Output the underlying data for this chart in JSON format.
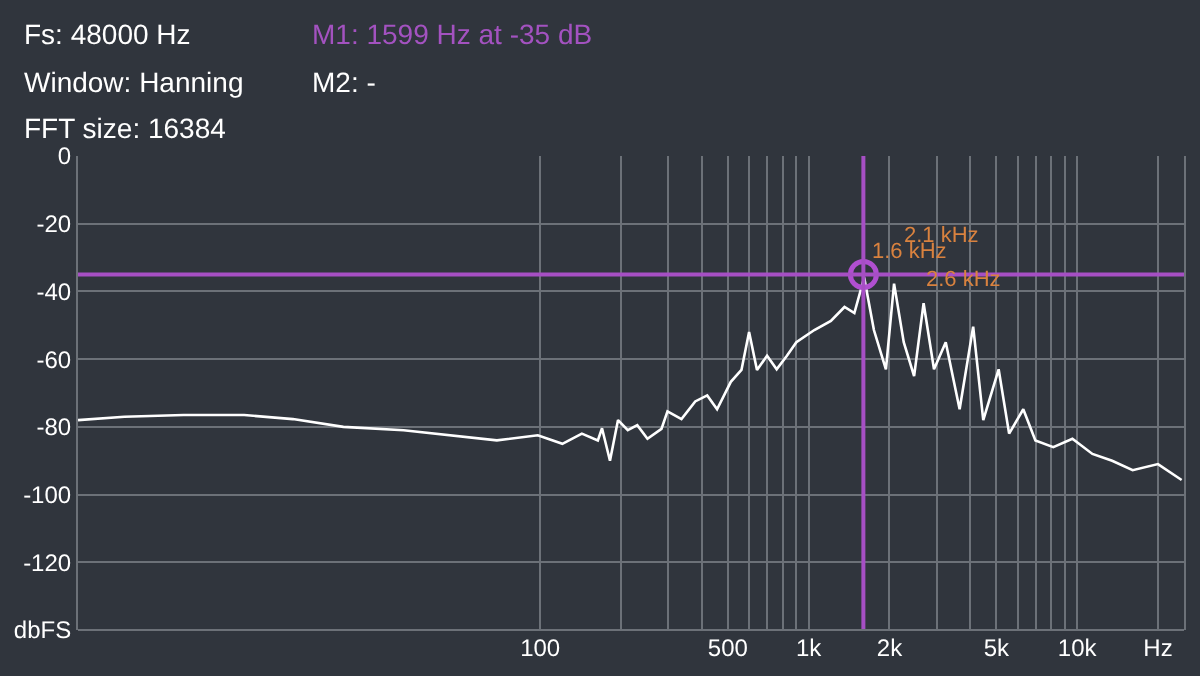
{
  "chart_data": {
    "type": "line",
    "annotations": [
      "Fs: 48000 Hz",
      "Window: Hanning",
      "FFT size: 16384",
      "M1: 1599 Hz at -35 dB",
      "M2: -",
      {
        "text": "2.1 kHz",
        "x": 2080,
        "y": -37.7
      },
      {
        "text": "1.6 kHz",
        "x": 1599,
        "y": -35
      },
      {
        "text": "2.6 kHz",
        "x": 2680,
        "y": -43.5
      }
    ],
    "log": "x",
    "xlim": [
      1.9,
      25000
    ],
    "xticks": [
      {
        "value": 100,
        "label": "100"
      },
      {
        "value": 200,
        "label": null
      },
      {
        "value": 300,
        "label": null
      },
      {
        "value": 400,
        "label": null
      },
      {
        "value": 500,
        "label": "500"
      },
      {
        "value": 600,
        "label": null
      },
      {
        "value": 700,
        "label": null
      },
      {
        "value": 800,
        "label": null
      },
      {
        "value": 900,
        "label": null
      },
      {
        "value": 1000,
        "label": "1k"
      },
      {
        "value": 2000,
        "label": "2k"
      },
      {
        "value": 3000,
        "label": null
      },
      {
        "value": 4000,
        "label": null
      },
      {
        "value": 5000,
        "label": "5k"
      },
      {
        "value": 6000,
        "label": null
      },
      {
        "value": 7000,
        "label": null
      },
      {
        "value": 8000,
        "label": null
      },
      {
        "value": 9000,
        "label": null
      },
      {
        "value": 10000,
        "label": "10k"
      },
      {
        "value": 20000,
        "label": "Hz"
      }
    ],
    "ylim": [
      -140,
      0
    ],
    "yticks": [
      {
        "value": -140,
        "label": "dbFS"
      },
      -120,
      -100,
      -80,
      -60,
      -40,
      -20,
      0
    ],
    "grid": true,
    "series": [
      {
        "color": "#ffffff",
        "x": [
          1.9,
          2.83,
          4.7,
          7.9,
          12,
          18.5,
          31,
          69,
          98,
          121,
          143,
          164,
          170,
          182,
          195,
          212,
          230,
          251,
          283,
          298,
          336,
          378,
          419,
          456,
          513,
          562,
          600,
          642,
          700,
          760,
          830,
          900,
          1050,
          1210,
          1360,
          1480,
          1610,
          1750,
          1940,
          2080,
          2260,
          2470,
          2680,
          2930,
          3240,
          3650,
          4100,
          4470,
          5100,
          5580,
          6300,
          6990,
          8150,
          9600,
          11400,
          13500,
          16100,
          20000,
          24500
        ],
        "values": [
          -78,
          -77,
          -76.5,
          -76.5,
          -77.7,
          -80,
          -81,
          -84,
          -82.5,
          -85,
          -82,
          -84,
          -80.4,
          -90,
          -78,
          -81,
          -79.5,
          -83.5,
          -80.6,
          -75.4,
          -77.7,
          -72.5,
          -70.7,
          -74.8,
          -66.7,
          -63.2,
          -52,
          -63.2,
          -59,
          -63,
          -59,
          -55,
          -51.4,
          -48.7,
          -44.6,
          -46.4,
          -35.9,
          -51.4,
          -63,
          -37.7,
          -55,
          -65,
          -43.5,
          -63,
          -55,
          -74.8,
          -50.4,
          -78,
          -63,
          -82,
          -74.8,
          -84,
          -86,
          -83.5,
          -88,
          -90,
          -92.8,
          -91,
          -95.7
        ]
      },
      {
        "type": "scatter",
        "color": "#b04fd0",
        "marker": "circle",
        "x": [
          1599
        ],
        "values": [
          -35
        ]
      }
    ],
    "ref_lines": [
      {
        "axis": "y",
        "value": -35,
        "color": "#a64fc4"
      },
      {
        "axis": "x",
        "value": 1599,
        "color": "#a64fc4"
      }
    ]
  }
}
